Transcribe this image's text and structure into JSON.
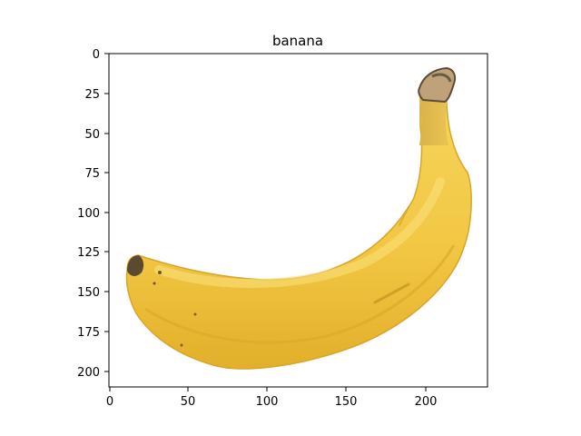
{
  "title": "banana",
  "subject": "banana",
  "x_axis": {
    "ticks": [
      "0",
      "50",
      "100",
      "150",
      "200"
    ],
    "range": [
      0,
      237
    ]
  },
  "y_axis": {
    "ticks": [
      "0",
      "25",
      "50",
      "75",
      "100",
      "125",
      "150",
      "175",
      "200"
    ],
    "range": [
      210,
      0
    ]
  },
  "colors": {
    "peel": "#f2c744",
    "peel_light": "#f8da6a",
    "peel_shadow": "#d9a61f",
    "stem": "#c9a23a",
    "stem_tip": "#6b5a45",
    "axes": "#000000"
  }
}
